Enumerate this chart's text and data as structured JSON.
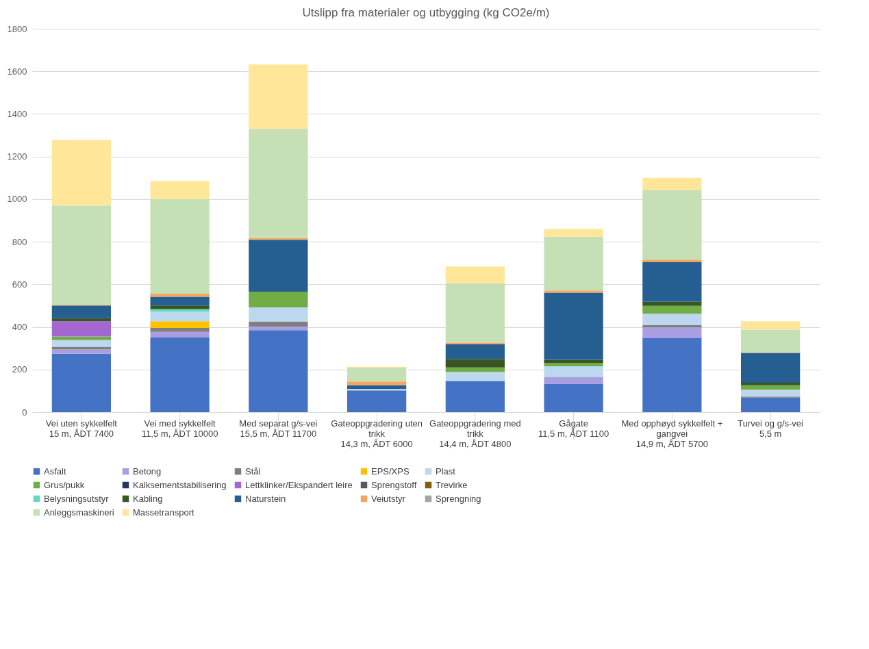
{
  "chart_data": {
    "type": "bar",
    "title": "Utslipp fra materialer og utbygging (kg CO2e/m)",
    "stacked": true,
    "categories": [
      "Vei uten sykkelfelt\n15 m, ÅDT 7400",
      "Vei med sykkelfelt\n11,5 m, ÅDT 10000",
      "Med separat g/s-vei\n15,5 m, ÅDT 11700",
      "Gateoppgradering uten trikk\n14,3 m, ÅDT 6000",
      "Gateoppgradering med trikk\n14,4 m, ÅDT 4800",
      "Gågate\n11,5 m, ÅDT 1100",
      "Med opphøyd sykkelfelt + gangvei\n14,9 m, ÅDT 5700",
      "Turvei og g/s-vei\n5,5 m"
    ],
    "ylim": [
      0,
      1800
    ],
    "yticks": [
      0,
      200,
      400,
      600,
      800,
      1000,
      1200,
      1400,
      1600,
      1800
    ],
    "grid": "y",
    "legend": "bottom",
    "series": [
      {
        "name": "Asfalt",
        "color": "#4472c4",
        "values": [
          274,
          350,
          385,
          102,
          146,
          133,
          347,
          68
        ]
      },
      {
        "name": "Betong",
        "color": "#a99ee2",
        "values": [
          20,
          27,
          16,
          null,
          null,
          31,
          51,
          null
        ]
      },
      {
        "name": "Stål",
        "color": "#7f7f7f",
        "values": [
          13,
          18,
          23,
          null,
          null,
          null,
          10,
          5
        ]
      },
      {
        "name": "EPS/XPS",
        "color": "#ffc000",
        "values": [
          null,
          32,
          null,
          null,
          null,
          null,
          null,
          null
        ]
      },
      {
        "name": "Plast",
        "color": "#bdd7ee",
        "values": [
          31,
          45,
          68,
          7,
          43,
          51,
          54,
          32
        ]
      },
      {
        "name": "Grus/pukk",
        "color": "#70ad47",
        "values": [
          17,
          null,
          74,
          null,
          21,
          16,
          37,
          21
        ]
      },
      {
        "name": "Kalksementstabilisering",
        "color": "#203864",
        "values": [
          null,
          null,
          null,
          null,
          null,
          null,
          null,
          null
        ]
      },
      {
        "name": "Lettklinker/Ekspandert leire",
        "color": "#a466d0",
        "values": [
          72,
          null,
          null,
          null,
          null,
          null,
          null,
          null
        ]
      },
      {
        "name": "Sprengstoff",
        "color": "#595959",
        "values": [
          null,
          null,
          null,
          null,
          null,
          null,
          null,
          null
        ]
      },
      {
        "name": "Trevirke",
        "color": "#806000",
        "values": [
          null,
          null,
          null,
          null,
          null,
          null,
          null,
          null
        ]
      },
      {
        "name": "Belysningsutstyr",
        "color": "#5fd9c0",
        "values": [
          null,
          12,
          null,
          null,
          null,
          null,
          null,
          null
        ]
      },
      {
        "name": "Kabling",
        "color": "#375623",
        "values": [
          14,
          17,
          null,
          null,
          39,
          15,
          19,
          12
        ]
      },
      {
        "name": "Naturstein",
        "color": "#255e91",
        "values": [
          60,
          41,
          243,
          17,
          69,
          315,
          186,
          140
        ]
      },
      {
        "name": "Veiutstyr",
        "color": "#f4a460",
        "values": [
          3,
          14,
          8,
          18,
          8,
          10,
          12,
          2
        ]
      },
      {
        "name": "Sprengning",
        "color": "#a5a5a5",
        "values": [
          null,
          null,
          null,
          null,
          null,
          null,
          null,
          null
        ]
      },
      {
        "name": "Anleggsmaskineri",
        "color": "#c5e0b4",
        "values": [
          466,
          445,
          513,
          65,
          279,
          253,
          327,
          107
        ]
      },
      {
        "name": "Massetransport",
        "color": "#ffe699",
        "values": [
          308,
          84,
          302,
          4,
          79,
          36,
          57,
          40
        ]
      }
    ]
  }
}
